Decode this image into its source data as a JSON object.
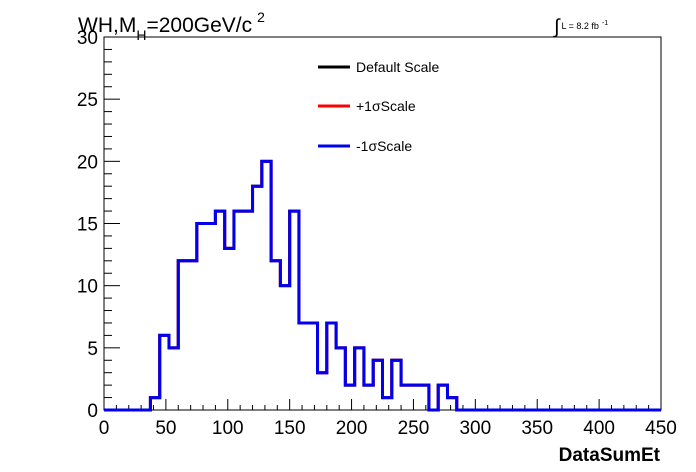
{
  "title": {
    "main": "WH,M",
    "sub": "H",
    "value": "=200GeV/c",
    "sup": "2"
  },
  "lumi": {
    "symbol": "∫",
    "text": "L = 8.2 fb",
    "sup": "-1"
  },
  "chart_data": {
    "type": "line",
    "xlabel": "DataSumEt",
    "ylabel": "",
    "xlim": [
      0,
      450
    ],
    "ylim": [
      0,
      30
    ],
    "xticks": [
      "0",
      "50",
      "100",
      "150",
      "200",
      "250",
      "300",
      "350",
      "400",
      "450"
    ],
    "yticks": [
      "0",
      "5",
      "10",
      "15",
      "20",
      "25",
      "30"
    ],
    "bin_edges": [
      0,
      7.5,
      15,
      22.5,
      30,
      37.5,
      45,
      52.5,
      60,
      67.5,
      75,
      82.5,
      90,
      97.5,
      105,
      112.5,
      120,
      127.5,
      135,
      142.5,
      150,
      157.5,
      165,
      172.5,
      180,
      187.5,
      195,
      202.5,
      210,
      217.5,
      225,
      232.5,
      240,
      247.5,
      255,
      262.5,
      270,
      277.5,
      285,
      292.5,
      300,
      307.5,
      315,
      322.5,
      330,
      337.5,
      345,
      352.5,
      360,
      367.5,
      375,
      382.5,
      390,
      397.5,
      405,
      412.5,
      420,
      427.5,
      435,
      442.5,
      450
    ],
    "series": [
      {
        "name": "Default Scale",
        "color": "#000000",
        "values": [
          0,
          0,
          0,
          0,
          0,
          1,
          6,
          5,
          12,
          12,
          15,
          15,
          16,
          13,
          16,
          16,
          18,
          20,
          12,
          10,
          16,
          7,
          7,
          3,
          7,
          5,
          2,
          5,
          2,
          4,
          1,
          4,
          2,
          2,
          2,
          0,
          2,
          1,
          0,
          0,
          0,
          0,
          0,
          0,
          0,
          0,
          0,
          0,
          0,
          0,
          0,
          0,
          0,
          0,
          0,
          0,
          0,
          0,
          0,
          0
        ]
      },
      {
        "name": "+1σScale",
        "color": "#ff0000",
        "values": [
          0,
          0,
          0,
          0,
          0,
          1,
          6,
          5,
          12,
          12,
          15,
          15,
          16,
          13,
          16,
          16,
          18,
          20,
          12,
          10,
          16,
          7,
          7,
          3,
          7,
          5,
          2,
          5,
          2,
          4,
          1,
          4,
          2,
          2,
          2,
          0,
          2,
          1,
          0,
          0,
          0,
          0,
          0,
          0,
          0,
          0,
          0,
          0,
          0,
          0,
          0,
          0,
          0,
          0,
          0,
          0,
          0,
          0,
          0,
          0
        ]
      },
      {
        "name": "-1σScale",
        "color": "#0000ee",
        "values": [
          0,
          0,
          0,
          0,
          0,
          1,
          6,
          5,
          12,
          12,
          15,
          15,
          16,
          13,
          16,
          16,
          18,
          20,
          12,
          10,
          16,
          7,
          7,
          3,
          7,
          5,
          2,
          5,
          2,
          4,
          1,
          4,
          2,
          2,
          2,
          0,
          2,
          1,
          0,
          0,
          0,
          0,
          0,
          0,
          0,
          0,
          0,
          0,
          0,
          0,
          0,
          0,
          0,
          0,
          0,
          0,
          0,
          0,
          0,
          0
        ]
      }
    ],
    "legend_position": "top-center",
    "grid": false
  }
}
